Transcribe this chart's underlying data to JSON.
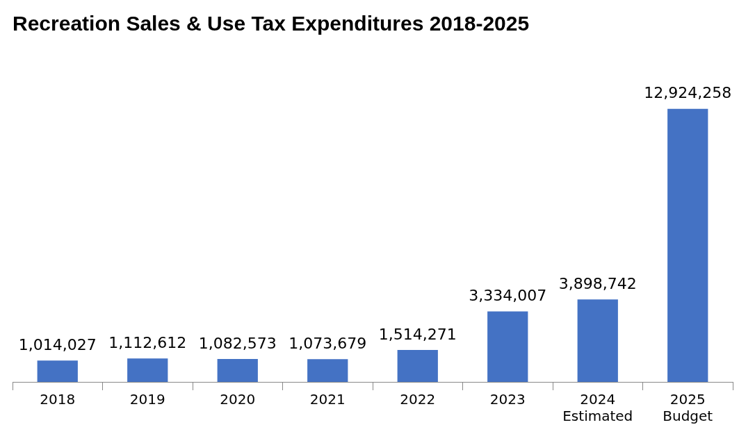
{
  "chart_data": {
    "type": "bar",
    "title": "Recreation Sales & Use Tax Expenditures 2018-2025",
    "categories": [
      "2018",
      "2019",
      "2020",
      "2021",
      "2022",
      "2023",
      "2024 Estimated",
      "2025 Budget"
    ],
    "values": [
      1014027,
      1112612,
      1082573,
      1073679,
      1514271,
      3334007,
      3898742,
      12924258
    ],
    "value_labels": [
      "1,014,027",
      "1,112,612",
      "1,082,573",
      "1,073,679",
      "1,514,271",
      "3,334,007",
      "3,898,742",
      "12,924,258"
    ],
    "color": "#4472c4",
    "legend": false
  }
}
